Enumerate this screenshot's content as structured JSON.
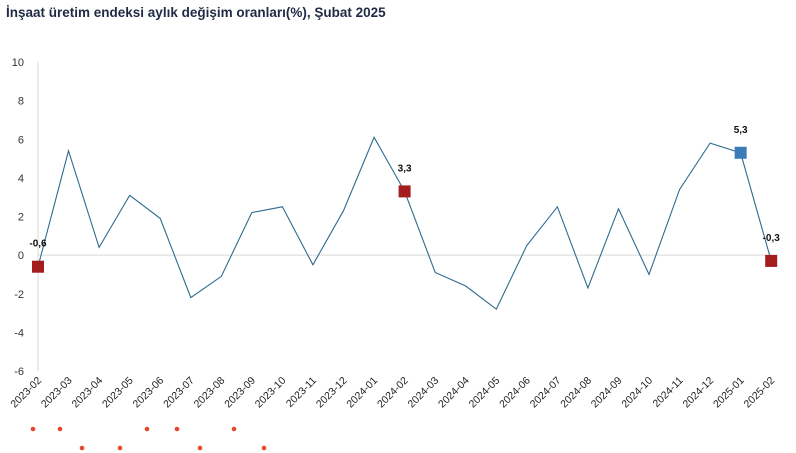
{
  "title": "İnşaat üretim endeksi aylık değişim oranları(%), Şubat 2025",
  "chart_data": {
    "type": "line",
    "title": "İnşaat üretim endeksi aylık değişim oranları(%), Şubat 2025",
    "xlabel": "",
    "ylabel": "",
    "ylim": [
      -6,
      10
    ],
    "yticks": [
      -6,
      -4,
      -2,
      0,
      2,
      4,
      6,
      8,
      10
    ],
    "ytick_labels": [
      "-6",
      "-4",
      "-2",
      "0",
      "2",
      "4",
      "6",
      "8",
      "10"
    ],
    "categories": [
      "2023-02",
      "2023-03",
      "2023-04",
      "2023-05",
      "2023-06",
      "2023-07",
      "2023-08",
      "2023-09",
      "2023-10",
      "2023-11",
      "2023-12",
      "2024-01",
      "2024-02",
      "2024-03",
      "2024-04",
      "2024-05",
      "2024-06",
      "2024-07",
      "2024-08",
      "2024-09",
      "2024-10",
      "2024-11",
      "2024-12",
      "2025-01",
      "2025-02"
    ],
    "series": [
      {
        "values": [
          -0.6,
          5.4,
          0.4,
          3.1,
          1.9,
          -2.2,
          -1.1,
          2.2,
          2.5,
          -0.5,
          2.3,
          6.1,
          3.3,
          -0.9,
          -1.6,
          -2.8,
          0.5,
          2.5,
          -1.7,
          2.4,
          -1.0,
          3.4,
          5.8,
          5.3,
          -0.3
        ],
        "color": "#2f6b8f"
      }
    ],
    "markers": [
      {
        "index": 0,
        "label": "-0,6",
        "color": "#a51c1c"
      },
      {
        "index": 12,
        "label": "3,3",
        "color": "#a51c1c"
      },
      {
        "index": 23,
        "label": "5,3",
        "color": "#3a7bb8"
      },
      {
        "index": 24,
        "label": "-0,3",
        "color": "#a51c1c"
      }
    ],
    "grid": false,
    "legend": "none",
    "zero_line_color": "#d9d9d9",
    "axis_color": "#d9d9d9",
    "footnote_dots_color": "#e8462c"
  }
}
